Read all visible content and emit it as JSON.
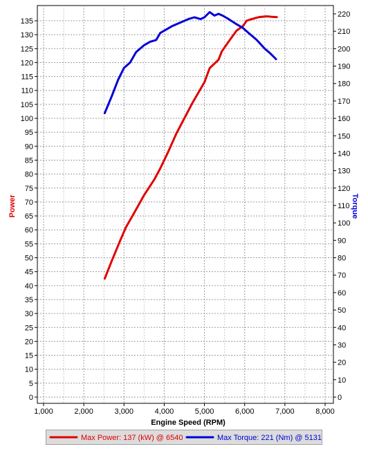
{
  "chart_data": {
    "type": "line",
    "title": "",
    "xlabel": "Engine Speed (RPM)",
    "ylabel_left": "Power",
    "ylabel_right": "Torque",
    "xlim": [
      1000,
      8000
    ],
    "ylim_left": [
      0,
      137
    ],
    "ylim_right": [
      0,
      222
    ],
    "x_ticks": [
      "1,000",
      "2,000",
      "3,000",
      "4,000",
      "5,000",
      "6,000",
      "7,000",
      "8,000"
    ],
    "y_ticks_left": [
      0,
      5,
      10,
      15,
      20,
      25,
      30,
      35,
      40,
      45,
      50,
      55,
      60,
      65,
      70,
      75,
      80,
      85,
      90,
      95,
      100,
      105,
      110,
      115,
      120,
      125,
      130,
      135
    ],
    "y_ticks_right": [
      0,
      10,
      20,
      30,
      40,
      50,
      60,
      70,
      80,
      90,
      100,
      110,
      120,
      130,
      140,
      150,
      160,
      170,
      180,
      190,
      200,
      210,
      220
    ],
    "grid": true,
    "legend_position": "bottom",
    "series": [
      {
        "name": "Power",
        "axis": "left",
        "color": "#e00000",
        "x": [
          2520,
          2700,
          2900,
          3050,
          3250,
          3500,
          3750,
          3900,
          4100,
          4300,
          4500,
          4700,
          4900,
          5000,
          5130,
          5350,
          5430,
          5600,
          5800,
          5950,
          6050,
          6150,
          6350,
          6540,
          6700,
          6800
        ],
        "y": [
          42.5,
          49,
          56,
          61,
          66,
          72.5,
          78,
          82,
          88,
          94.5,
          100,
          105.5,
          110.5,
          113,
          118,
          121,
          124,
          127.5,
          131.5,
          133,
          135,
          135.5,
          136.3,
          136.6,
          136.4,
          136.3
        ]
      },
      {
        "name": "Torque",
        "axis": "right",
        "color": "#0000d8",
        "x": [
          2520,
          2700,
          2850,
          3000,
          3150,
          3300,
          3500,
          3650,
          3800,
          3900,
          4050,
          4200,
          4400,
          4600,
          4750,
          4900,
          5000,
          5130,
          5250,
          5350,
          5450,
          5600,
          5800,
          5950,
          6100,
          6300,
          6500,
          6650,
          6780
        ],
        "y": [
          163,
          173,
          182,
          189,
          192,
          198,
          202,
          204,
          205,
          209,
          211,
          213,
          215,
          217,
          218,
          217,
          218,
          221,
          219,
          220,
          219,
          217,
          214,
          212,
          209,
          205,
          200,
          197,
          194
        ]
      }
    ],
    "legend": [
      {
        "label": "Max Power: 137 (kW) @ 6540",
        "color": "#e00000"
      },
      {
        "label": "Max Torque: 221 (Nm) @ 5131",
        "color": "#0000d8"
      }
    ]
  }
}
